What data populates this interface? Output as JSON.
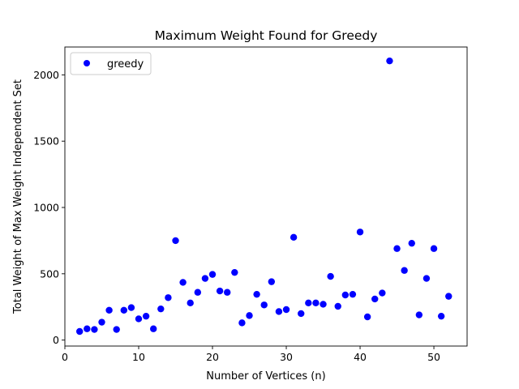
{
  "chart_data": {
    "type": "scatter",
    "title": "Maximum Weight Found for Greedy",
    "xlabel": "Number of Vertices (n)",
    "ylabel": "Total Weight of Max Weight Independent Set",
    "xlim": [
      0,
      54.5
    ],
    "ylim": [
      -45,
      2210
    ],
    "xticks": [
      0,
      10,
      20,
      30,
      40,
      50
    ],
    "yticks": [
      0,
      500,
      1000,
      1500,
      2000
    ],
    "grid": false,
    "legend_position": "upper left",
    "series": [
      {
        "name": "greedy",
        "color": "#0000ff",
        "x": [
          2,
          3,
          4,
          5,
          6,
          7,
          8,
          9,
          10,
          11,
          12,
          13,
          14,
          15,
          16,
          17,
          18,
          19,
          20,
          21,
          22,
          23,
          24,
          25,
          26,
          27,
          28,
          29,
          30,
          31,
          32,
          33,
          34,
          35,
          36,
          37,
          38,
          39,
          40,
          41,
          42,
          43,
          44,
          45,
          46,
          47,
          48,
          49,
          50,
          51,
          52
        ],
        "y": [
          65,
          85,
          80,
          135,
          225,
          80,
          225,
          245,
          160,
          180,
          85,
          235,
          320,
          750,
          435,
          280,
          360,
          465,
          495,
          370,
          360,
          510,
          130,
          185,
          345,
          265,
          440,
          215,
          230,
          775,
          200,
          280,
          280,
          270,
          480,
          255,
          340,
          345,
          815,
          175,
          310,
          355,
          2105,
          690,
          525,
          730,
          190,
          465,
          690,
          180,
          330
        ]
      }
    ]
  }
}
